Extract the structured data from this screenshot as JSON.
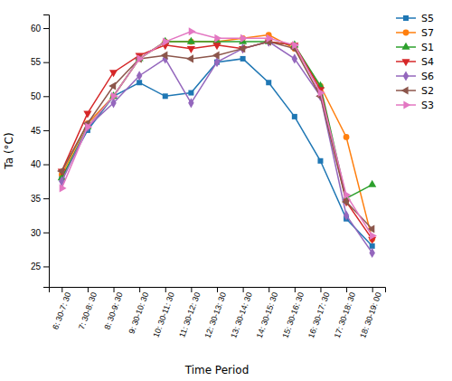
{
  "chart_data": {
    "type": "line",
    "xlabel": "Time Period",
    "ylabel": "Ta (°C)",
    "categories": [
      "6: 30-7: 30",
      "7: 30-8: 30",
      "8: 30-9: 30",
      "9: 30-10: 30",
      "10: 30-11: 30",
      "11: 30-12: 30",
      "12: 30-13: 30",
      "13: 30-14: 30",
      "14: 30-15: 30",
      "15: 30-16: 30",
      "16: 30-17: 30",
      "17: 30-18: 30",
      "18: 30-19: 00"
    ],
    "series": [
      {
        "name": "S5",
        "marker": "square",
        "values": [
          38.0,
          45.0,
          50.0,
          52.0,
          50.0,
          50.5,
          55.0,
          55.5,
          52.0,
          47.0,
          40.5,
          32.0,
          28.0
        ]
      },
      {
        "name": "S7",
        "marker": "circle",
        "values": [
          38.5,
          46.0,
          50.0,
          55.5,
          58.0,
          58.0,
          58.0,
          58.5,
          59.0,
          57.0,
          51.5,
          44.0,
          29.0
        ]
      },
      {
        "name": "S1",
        "marker": "triangle-up",
        "values": [
          38.0,
          45.5,
          50.0,
          55.5,
          58.0,
          58.0,
          58.0,
          58.0,
          58.0,
          57.5,
          51.5,
          35.0,
          37.0
        ]
      },
      {
        "name": "S4",
        "marker": "triangle-down",
        "values": [
          39.0,
          47.5,
          53.5,
          56.0,
          57.5,
          57.0,
          57.5,
          57.0,
          58.0,
          57.5,
          51.0,
          34.5,
          29.0
        ]
      },
      {
        "name": "S6",
        "marker": "diamond",
        "values": [
          37.5,
          45.5,
          49.0,
          53.0,
          55.5,
          49.0,
          55.0,
          57.0,
          58.0,
          55.5,
          50.0,
          32.5,
          27.0
        ]
      },
      {
        "name": "S2",
        "marker": "triangle-left",
        "values": [
          39.0,
          46.0,
          51.5,
          55.5,
          56.0,
          55.5,
          56.0,
          57.0,
          58.0,
          57.0,
          50.0,
          34.5,
          30.5
        ]
      },
      {
        "name": "S3",
        "marker": "triangle-right",
        "values": [
          36.5,
          45.5,
          50.0,
          55.5,
          58.0,
          59.5,
          58.5,
          58.5,
          58.5,
          57.5,
          50.5,
          35.5,
          29.5
        ]
      }
    ],
    "ylim": [
      22,
      62
    ],
    "yticks": [
      25,
      30,
      35,
      40,
      45,
      50,
      55,
      60
    ],
    "grid": false,
    "legend": "upper right"
  }
}
